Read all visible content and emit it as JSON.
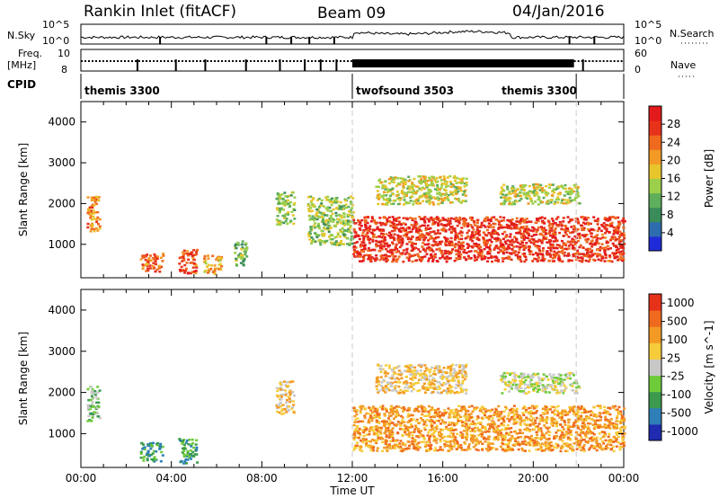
{
  "header": {
    "station": "Rankin Inlet (fitACF)",
    "beam": "Beam 09",
    "date": "04/Jan/2016"
  },
  "top_panels": {
    "nsky_label": "N.Sky",
    "nsearch_label": "N.Search",
    "freq_label_1": "Freq.",
    "freq_label_2": "[MHz]",
    "nave_label": "Nave",
    "cpid_label": "CPID",
    "noise_ticks": [
      "10^5",
      "10^0"
    ],
    "noise_ticks_right": [
      "10^5",
      "10^0"
    ],
    "freq_ticks": [
      "10",
      "8"
    ],
    "nave_ticks": [
      "60",
      "0"
    ],
    "cpid_segments": [
      {
        "name": "themis 3300",
        "start_h": 0,
        "end_h": 12
      },
      {
        "name": "twofsound 3503",
        "start_h": 12,
        "end_h": 21.9
      },
      {
        "name": "themis 3300",
        "start_h": 21.9,
        "end_h": 24
      }
    ]
  },
  "chart_data": [
    {
      "type": "heatmap",
      "title": "",
      "xlabel": "",
      "ylabel": "Slant Range [km]",
      "x_range_hours": [
        0,
        24
      ],
      "ylim": [
        180,
        4500
      ],
      "y_ticks": [
        1000,
        2000,
        3000,
        4000
      ],
      "colorbar": {
        "label": "Power [dB]",
        "range": [
          0,
          32
        ],
        "ticks": [
          4,
          8,
          12,
          16,
          20,
          24,
          28
        ],
        "colors": [
          "#1f2bd8",
          "#2e6cb0",
          "#3a8c5a",
          "#5fae5c",
          "#9ccf4a",
          "#e7c52c",
          "#f39a25",
          "#ef6a1e",
          "#e7321a",
          "#e31a1c"
        ]
      },
      "echo_regions": [
        {
          "t0": 0.25,
          "t1": 0.8,
          "r0": 1300,
          "r1": 2200,
          "level": 22
        },
        {
          "t0": 2.6,
          "t1": 3.6,
          "r0": 350,
          "r1": 800,
          "level": 24
        },
        {
          "t0": 4.3,
          "t1": 5.1,
          "r0": 300,
          "r1": 900,
          "level": 26
        },
        {
          "t0": 5.4,
          "t1": 6.2,
          "r0": 300,
          "r1": 750,
          "level": 20
        },
        {
          "t0": 6.7,
          "t1": 7.3,
          "r0": 500,
          "r1": 1100,
          "level": 12
        },
        {
          "t0": 8.6,
          "t1": 9.4,
          "r0": 1500,
          "r1": 2300,
          "level": 14
        },
        {
          "t0": 10.0,
          "t1": 12.0,
          "r0": 1000,
          "r1": 2200,
          "level": 14
        },
        {
          "t0": 12.0,
          "t1": 21.8,
          "r0": 600,
          "r1": 1700,
          "level": 28
        },
        {
          "t0": 21.8,
          "t1": 24.0,
          "r0": 600,
          "r1": 1700,
          "level": 27
        },
        {
          "t0": 13.0,
          "t1": 17.0,
          "r0": 2000,
          "r1": 2700,
          "level": 16
        },
        {
          "t0": 18.5,
          "t1": 22.0,
          "r0": 2000,
          "r1": 2500,
          "level": 16
        }
      ]
    },
    {
      "type": "heatmap",
      "title": "",
      "xlabel": "Time UT",
      "ylabel": "Slant Range [km]",
      "x_range_hours": [
        0,
        24
      ],
      "x_tick_labels": [
        "00:00",
        "04:00",
        "08:00",
        "12:00",
        "16:00",
        "20:00",
        "00:00"
      ],
      "ylim": [
        180,
        4500
      ],
      "y_ticks": [
        1000,
        2000,
        3000,
        4000
      ],
      "colorbar": {
        "label": "Velocity [m s^-1]",
        "ticks": [
          "1000",
          "500",
          "100",
          "25",
          "-25",
          "-100",
          "-500",
          "-1000"
        ],
        "colors": [
          "#1f2bb0",
          "#2e7fb8",
          "#3b9a4d",
          "#6ecb3a",
          "#c8c8c8",
          "#f7cc3a",
          "#f39a25",
          "#ef6a1e",
          "#e7321a"
        ]
      },
      "echo_regions": [
        {
          "t0": 0.25,
          "t1": 0.8,
          "r0": 1300,
          "r1": 2200,
          "level": 3
        },
        {
          "t0": 2.6,
          "t1": 3.6,
          "r0": 350,
          "r1": 800,
          "level": 2
        },
        {
          "t0": 4.3,
          "t1": 5.1,
          "r0": 300,
          "r1": 900,
          "level": 2
        },
        {
          "t0": 8.6,
          "t1": 9.4,
          "r0": 1500,
          "r1": 2300,
          "level": 5
        },
        {
          "t0": 12.0,
          "t1": 24.0,
          "r0": 600,
          "r1": 1700,
          "level": 6
        },
        {
          "t0": 13.0,
          "t1": 17.0,
          "r0": 2000,
          "r1": 2700,
          "level": 5
        },
        {
          "t0": 18.5,
          "t1": 22.0,
          "r0": 2000,
          "r1": 2500,
          "level": 4
        }
      ]
    }
  ]
}
